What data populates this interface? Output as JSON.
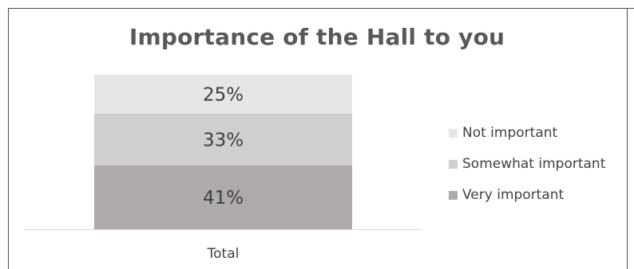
{
  "chart_data": {
    "type": "bar",
    "stacked": true,
    "title": "Importance of the Hall to you",
    "categories": [
      "Total"
    ],
    "series": [
      {
        "name": "Very important",
        "values": [
          41
        ],
        "label": "41%",
        "color": "#aeaaaa"
      },
      {
        "name": "Somewhat important",
        "values": [
          33
        ],
        "label": "33%",
        "color": "#d0cece"
      },
      {
        "name": "Not important",
        "values": [
          25
        ],
        "label": "25%",
        "color": "#e7e6e6"
      }
    ],
    "legend_order": [
      "Not important",
      "Somewhat important",
      "Very important"
    ],
    "legend_position": "right",
    "grid": false,
    "ylim": [
      0,
      99
    ]
  }
}
